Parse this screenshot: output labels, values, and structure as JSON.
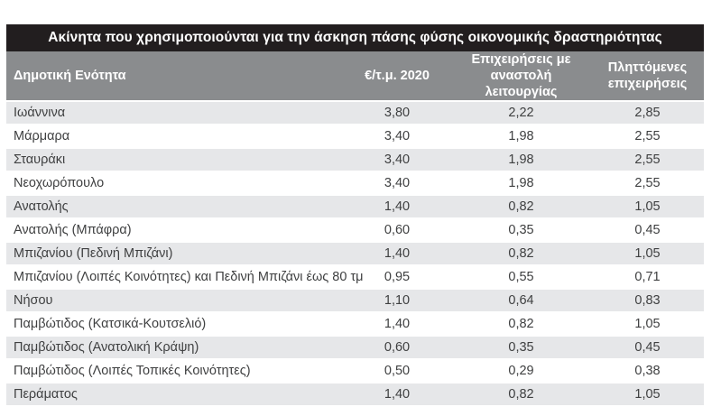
{
  "table": {
    "title": "Ακίνητα που χρησιμοποιούνται για την άσκηση πάσης φύσης οικονομικής δραστηριότητας",
    "columns": [
      {
        "label": "Δημοτική Ενότητα"
      },
      {
        "label": "€/τ.μ. 2020"
      },
      {
        "label": "Επιχειρήσεις με αναστολή λειτουργίας"
      },
      {
        "label": "Πληττόμενες επιχειρήσεις"
      }
    ],
    "rows": [
      [
        "Ιωάννινα",
        "3,80",
        "2,22",
        "2,85"
      ],
      [
        "Μάρμαρα",
        "3,40",
        "1,98",
        "2,55"
      ],
      [
        "Σταυράκι",
        "3,40",
        "1,98",
        "2,55"
      ],
      [
        "Νεοχωρόπουλο",
        "3,40",
        "1,98",
        "2,55"
      ],
      [
        "Ανατολής",
        "1,40",
        "0,82",
        "1,05"
      ],
      [
        "Ανατολής (Μπάφρα)",
        "0,60",
        "0,35",
        "0,45"
      ],
      [
        "Μπιζανίου (Πεδινή Μπιζάνι)",
        "1,40",
        "0,82",
        "1,05"
      ],
      [
        "Μπιζανίου (Λοιπές Κοινότητες) και Πεδινή Μπιζάνι έως 80 τμ",
        "0,95",
        "0,55",
        "0,71"
      ],
      [
        "Νήσου",
        "1,10",
        "0,64",
        "0,83"
      ],
      [
        "Παμβώτιδος (Κατσικά-Κουτσελιό)",
        "1,40",
        "0,82",
        "1,05"
      ],
      [
        "Παμβώτιδος (Ανατολική Κράψη)",
        "0,60",
        "0,35",
        "0,45"
      ],
      [
        "Παμβώτιδος (Λοιπές Τοπικές Κοινότητες)",
        "0,50",
        "0,29",
        "0,38"
      ],
      [
        "Περάματος",
        "1,40",
        "0,82",
        "1,05"
      ]
    ],
    "colors": {
      "title_bg": "#221e1f",
      "title_text": "#ffffff",
      "header_bg": "#8a8c8e",
      "header_text": "#ffffff",
      "row_bg": "#ffffff",
      "row_alt_bg": "#e6e7e9",
      "row_text": "#3f4041"
    }
  }
}
